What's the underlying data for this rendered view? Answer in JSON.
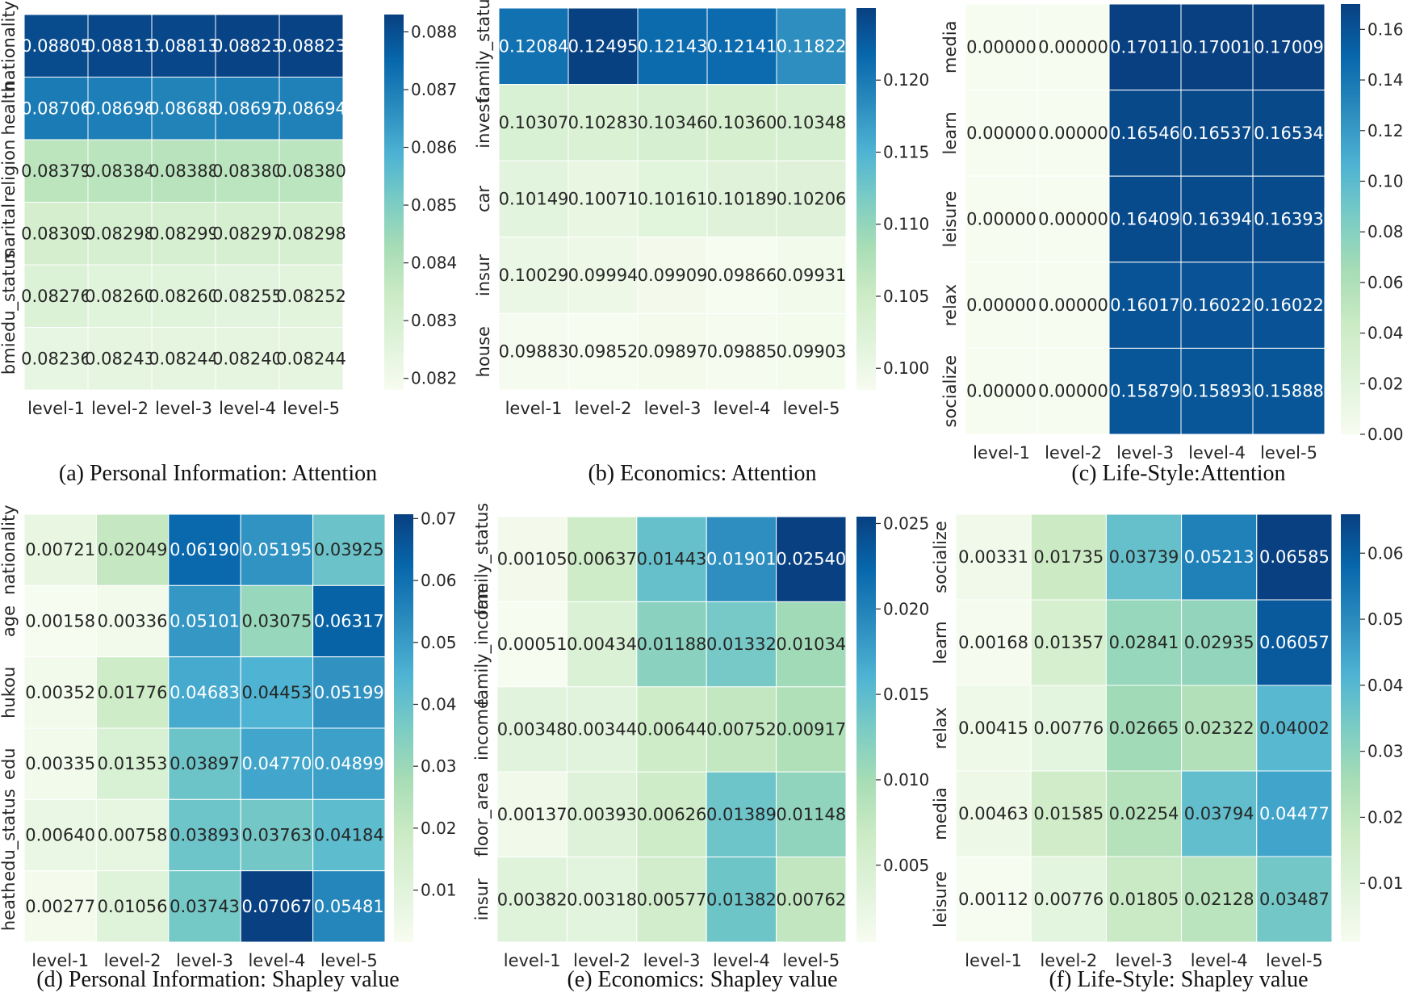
{
  "colors": {
    "scale": [
      "#f7fcf0",
      "#e0f3db",
      "#ccebc5",
      "#a8ddb5",
      "#7bccc4",
      "#4eb3d3",
      "#2b8cbe",
      "#0868ac",
      "#084081"
    ],
    "cell_border": "#ffffff",
    "dark_text": "#262626",
    "light_text": "#ffffff"
  },
  "chart_data": [
    {
      "id": "a",
      "type": "heatmap",
      "caption": "(a)  Personal Information: Attention",
      "columns": [
        "level-1",
        "level-2",
        "level-3",
        "level-4",
        "level-5"
      ],
      "rows": [
        "nationality",
        "health",
        "religion",
        "marital",
        "edu_status",
        "bmi"
      ],
      "labels": [
        [
          "0.08805",
          "0.08813",
          "0.08813",
          "0.08823",
          "0.08823"
        ],
        [
          "0.08706",
          "0.08698",
          "0.08688",
          "0.08697",
          "0.08694"
        ],
        [
          "0.08379",
          "0.08384",
          "0.08388",
          "0.08380",
          "0.08380"
        ],
        [
          "0.08309",
          "0.08298",
          "0.08299",
          "0.08297",
          "0.08298"
        ],
        [
          "0.08276",
          "0.08260",
          "0.08260",
          "0.08255",
          "0.08252"
        ],
        [
          "0.08236",
          "0.08243",
          "0.08244",
          "0.08240",
          "0.08244"
        ]
      ],
      "vmin": 0.0818,
      "vmax": 0.0883,
      "colorbar_ticks": [
        {
          "v": 0.082,
          "label": "0.082"
        },
        {
          "v": 0.083,
          "label": "0.083"
        },
        {
          "v": 0.084,
          "label": "0.084"
        },
        {
          "v": 0.085,
          "label": "0.085"
        },
        {
          "v": 0.086,
          "label": "0.086"
        },
        {
          "v": 0.087,
          "label": "0.087"
        },
        {
          "v": 0.088,
          "label": "0.088"
        }
      ]
    },
    {
      "id": "b",
      "type": "heatmap",
      "caption": "(b)  Economics: Attention",
      "columns": [
        "level-1",
        "level-2",
        "level-3",
        "level-4",
        "level-5"
      ],
      "rows": [
        "family_status",
        "invest",
        "car",
        "insur",
        "house"
      ],
      "labels": [
        [
          "0.12084",
          "0.12495",
          "0.12143",
          "0.12141",
          "0.11822"
        ],
        [
          "0.10307",
          "0.10283",
          "0.10346",
          "0.10360",
          "0.10348"
        ],
        [
          "0.10149",
          "0.10071",
          "0.10161",
          "0.10189",
          "0.10206"
        ],
        [
          "0.10029",
          "0.09994",
          "0.09909",
          "0.09866",
          "0.09931"
        ],
        [
          "0.09883",
          "0.09852",
          "0.09897",
          "0.09885",
          "0.09903"
        ]
      ],
      "vmin": 0.0985,
      "vmax": 0.125,
      "colorbar_ticks": [
        {
          "v": 0.1,
          "label": "0.100"
        },
        {
          "v": 0.105,
          "label": "0.105"
        },
        {
          "v": 0.11,
          "label": "0.110"
        },
        {
          "v": 0.115,
          "label": "0.115"
        },
        {
          "v": 0.12,
          "label": "0.120"
        }
      ]
    },
    {
      "id": "c",
      "type": "heatmap",
      "caption": "(c)  Life-Style:Attention",
      "columns": [
        "level-1",
        "level-2",
        "level-3",
        "level-4",
        "level-5"
      ],
      "rows": [
        "media",
        "learn",
        "leisure",
        "relax",
        "socialize"
      ],
      "labels": [
        [
          "0.00000",
          "0.00000",
          "0.17011",
          "0.17001",
          "0.17009"
        ],
        [
          "0.00000",
          "0.00000",
          "0.16546",
          "0.16537",
          "0.16534"
        ],
        [
          "0.00000",
          "0.00000",
          "0.16409",
          "0.16394",
          "0.16393"
        ],
        [
          "0.00000",
          "0.00000",
          "0.16017",
          "0.16022",
          "0.16022"
        ],
        [
          "0.00000",
          "0.00000",
          "0.15879",
          "0.15893",
          "0.15888"
        ]
      ],
      "vmin": 0.0,
      "vmax": 0.17,
      "colorbar_ticks": [
        {
          "v": 0.0,
          "label": "0.00"
        },
        {
          "v": 0.02,
          "label": "0.02"
        },
        {
          "v": 0.04,
          "label": "0.04"
        },
        {
          "v": 0.06,
          "label": "0.06"
        },
        {
          "v": 0.08,
          "label": "0.08"
        },
        {
          "v": 0.1,
          "label": "0.10"
        },
        {
          "v": 0.12,
          "label": "0.12"
        },
        {
          "v": 0.14,
          "label": "0.14"
        },
        {
          "v": 0.16,
          "label": "0.16"
        }
      ]
    },
    {
      "id": "d",
      "type": "heatmap",
      "caption": "(d)  Personal Information: Shapley value",
      "columns": [
        "level-1",
        "level-2",
        "level-3",
        "level-4",
        "level-5"
      ],
      "rows": [
        "nationality",
        "age",
        "hukou",
        "edu",
        "edu_status",
        "heath"
      ],
      "labels": [
        [
          "0.00721",
          "0.02049",
          "0.06190",
          "0.05195",
          "0.03925"
        ],
        [
          "0.00158",
          "0.00336",
          "0.05101",
          "0.03075",
          "0.06317"
        ],
        [
          "0.00352",
          "0.01776",
          "0.04683",
          "0.04453",
          "0.05199"
        ],
        [
          "0.00335",
          "0.01353",
          "0.03897",
          "0.04770",
          "0.04899"
        ],
        [
          "0.00640",
          "0.00758",
          "0.03893",
          "0.03763",
          "0.04184"
        ],
        [
          "0.00277",
          "0.01056",
          "0.03743",
          "0.07067",
          "0.05481"
        ]
      ],
      "vmin": 0.0016,
      "vmax": 0.0707,
      "colorbar_ticks": [
        {
          "v": 0.01,
          "label": "0.01"
        },
        {
          "v": 0.02,
          "label": "0.02"
        },
        {
          "v": 0.03,
          "label": "0.03"
        },
        {
          "v": 0.04,
          "label": "0.04"
        },
        {
          "v": 0.05,
          "label": "0.05"
        },
        {
          "v": 0.06,
          "label": "0.06"
        },
        {
          "v": 0.07,
          "label": "0.07"
        }
      ]
    },
    {
      "id": "e",
      "type": "heatmap",
      "caption": "(e)  Economics: Shapley value",
      "columns": [
        "level-1",
        "level-2",
        "level-3",
        "level-4",
        "level-5"
      ],
      "rows": [
        "family_status",
        "family_income",
        "income",
        "floor_area",
        "insur"
      ],
      "labels": [
        [
          "0.00105",
          "0.00637",
          "0.01443",
          "0.01901",
          "0.02540"
        ],
        [
          "0.00051",
          "0.00434",
          "0.01188",
          "0.01332",
          "0.01034"
        ],
        [
          "0.00348",
          "0.00344",
          "0.00644",
          "0.00752",
          "0.00917"
        ],
        [
          "0.00137",
          "0.00393",
          "0.00626",
          "0.01389",
          "0.01148"
        ],
        [
          "0.00382",
          "0.00318",
          "0.00577",
          "0.01382",
          "0.00762"
        ]
      ],
      "vmin": 0.0005,
      "vmax": 0.0254,
      "colorbar_ticks": [
        {
          "v": 0.005,
          "label": "0.005"
        },
        {
          "v": 0.01,
          "label": "0.010"
        },
        {
          "v": 0.015,
          "label": "0.015"
        },
        {
          "v": 0.02,
          "label": "0.020"
        },
        {
          "v": 0.025,
          "label": "0.025"
        }
      ]
    },
    {
      "id": "f",
      "type": "heatmap",
      "caption": "(f)  Life-Style: Shapley value",
      "columns": [
        "level-1",
        "level-2",
        "level-3",
        "level-4",
        "level-5"
      ],
      "rows": [
        "socialize",
        "learn",
        "relax",
        "media",
        "leisure"
      ],
      "labels": [
        [
          "0.00331",
          "0.01735",
          "0.03739",
          "0.05213",
          "0.06585"
        ],
        [
          "0.00168",
          "0.01357",
          "0.02841",
          "0.02935",
          "0.06057"
        ],
        [
          "0.00415",
          "0.00776",
          "0.02665",
          "0.02322",
          "0.04002"
        ],
        [
          "0.00463",
          "0.01585",
          "0.02254",
          "0.03794",
          "0.04477"
        ],
        [
          "0.00112",
          "0.00776",
          "0.01805",
          "0.02128",
          "0.03487"
        ]
      ],
      "vmin": 0.0011,
      "vmax": 0.0659,
      "colorbar_ticks": [
        {
          "v": 0.01,
          "label": "0.01"
        },
        {
          "v": 0.02,
          "label": "0.02"
        },
        {
          "v": 0.03,
          "label": "0.03"
        },
        {
          "v": 0.04,
          "label": "0.04"
        },
        {
          "v": 0.05,
          "label": "0.05"
        },
        {
          "v": 0.06,
          "label": "0.06"
        }
      ]
    }
  ]
}
